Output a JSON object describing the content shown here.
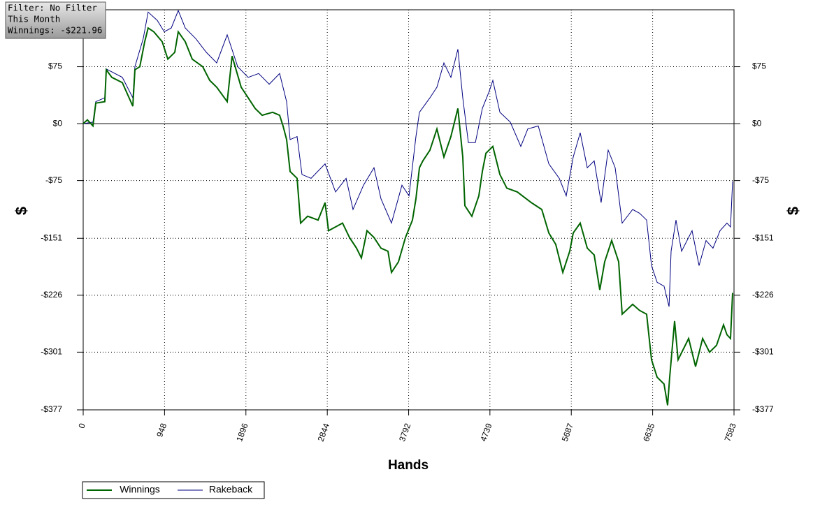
{
  "chart_data": {
    "type": "line",
    "annotations": [
      "Filter: No Filter",
      "This Month",
      "Winnings: -$221.96"
    ],
    "xlabel": "Hands",
    "ylabel": "$",
    "xlim": [
      0,
      7583
    ],
    "xticks": [
      0,
      948,
      1896,
      2844,
      3792,
      4739,
      5687,
      6635,
      7583
    ],
    "ylim": [
      -377,
      150
    ],
    "yticks": [
      {
        "value": 75,
        "label": "$75"
      },
      {
        "value": 0,
        "label": "$0"
      },
      {
        "value": -75,
        "label": "-$75"
      },
      {
        "value": -151,
        "label": "-$151"
      },
      {
        "value": -226,
        "label": "-$226"
      },
      {
        "value": -301,
        "label": "-$301"
      },
      {
        "value": -377,
        "label": "-$377"
      }
    ],
    "grid": true,
    "legend": "bottom-left",
    "series": [
      {
        "name": "Winnings",
        "color": "#006400",
        "x": [
          0,
          49,
          114,
          147,
          252,
          269,
          334,
          456,
          578,
          603,
          660,
          717,
          757,
          823,
          920,
          986,
          1067,
          1108,
          1189,
          1271,
          1393,
          1474,
          1556,
          1678,
          1735,
          1841,
          1922,
          2004,
          2085,
          2207,
          2289,
          2329,
          2370,
          2411,
          2492,
          2533,
          2615,
          2737,
          2818,
          2859,
          2940,
          3022,
          3103,
          3185,
          3242,
          3307,
          3388,
          3470,
          3551,
          3592,
          3673,
          3755,
          3836,
          3877,
          3918,
          3958,
          4040,
          4121,
          4203,
          4284,
          4366,
          4423,
          4447,
          4529,
          4610,
          4651,
          4692,
          4773,
          4855,
          4936,
          5058,
          5221,
          5343,
          5425,
          5506,
          5588,
          5669,
          5710,
          5791,
          5873,
          5954,
          6019,
          6076,
          6158,
          6239,
          6280,
          6402,
          6483,
          6565,
          6622,
          6687,
          6768,
          6809,
          6834,
          6891,
          6931,
          7054,
          7135,
          7217,
          7298,
          7379,
          7461,
          7501,
          7542,
          7567
        ],
        "values": [
          0,
          5,
          -3,
          27,
          29,
          71,
          61,
          54,
          23,
          71,
          75,
          108,
          126,
          121,
          108,
          85,
          94,
          121,
          108,
          85,
          75,
          57,
          48,
          29,
          89,
          48,
          34,
          20,
          11,
          15,
          11,
          -3,
          -21,
          -63,
          -72,
          -131,
          -122,
          -127,
          -104,
          -141,
          -136,
          -131,
          -150,
          -164,
          -177,
          -141,
          -150,
          -164,
          -168,
          -196,
          -182,
          -150,
          -127,
          -99,
          -58,
          -49,
          -35,
          -7,
          -44,
          -17,
          20,
          -44,
          -108,
          -122,
          -95,
          -63,
          -39,
          -30,
          -67,
          -85,
          -90,
          -104,
          -113,
          -144,
          -159,
          -196,
          -168,
          -144,
          -131,
          -164,
          -173,
          -219,
          -182,
          -154,
          -182,
          -251,
          -238,
          -246,
          -251,
          -311,
          -334,
          -343,
          -371,
          -334,
          -260,
          -311,
          -283,
          -320,
          -283,
          -301,
          -292,
          -265,
          -278,
          -283,
          -223
        ]
      },
      {
        "name": "Rakeback",
        "color": "#000080",
        "x": [
          0,
          114,
          147,
          252,
          269,
          456,
          578,
          603,
          700,
          757,
          863,
          945,
          1026,
          1108,
          1189,
          1311,
          1434,
          1556,
          1678,
          1800,
          1922,
          2044,
          2167,
          2289,
          2370,
          2411,
          2492,
          2549,
          2655,
          2818,
          2940,
          3063,
          3144,
          3266,
          3388,
          3470,
          3592,
          3714,
          3796,
          3877,
          3918,
          4040,
          4121,
          4203,
          4284,
          4366,
          4423,
          4488,
          4569,
          4651,
          4732,
          4773,
          4855,
          4977,
          5099,
          5180,
          5302,
          5425,
          5547,
          5628,
          5710,
          5791,
          5873,
          5954,
          6035,
          6117,
          6198,
          6280,
          6402,
          6483,
          6565,
          6622,
          6687,
          6768,
          6826,
          6850,
          6907,
          6972,
          7094,
          7176,
          7257,
          7338,
          7420,
          7501,
          7542,
          7567
        ],
        "values": [
          0,
          2,
          29,
          34,
          72,
          61,
          34,
          75,
          112,
          147,
          136,
          121,
          126,
          149,
          126,
          112,
          94,
          80,
          117,
          75,
          61,
          66,
          52,
          66,
          29,
          -21,
          -17,
          -67,
          -72,
          -53,
          -90,
          -72,
          -113,
          -81,
          -58,
          -99,
          -131,
          -81,
          -95,
          -17,
          15,
          34,
          48,
          80,
          61,
          98,
          34,
          -25,
          -25,
          20,
          43,
          57,
          15,
          2,
          -30,
          -7,
          -3,
          -53,
          -72,
          -95,
          -44,
          -12,
          -58,
          -49,
          -104,
          -35,
          -58,
          -131,
          -113,
          -118,
          -127,
          -187,
          -209,
          -214,
          -241,
          -168,
          -127,
          -168,
          -141,
          -187,
          -154,
          -164,
          -141,
          -131,
          -136,
          -76
        ]
      }
    ]
  }
}
